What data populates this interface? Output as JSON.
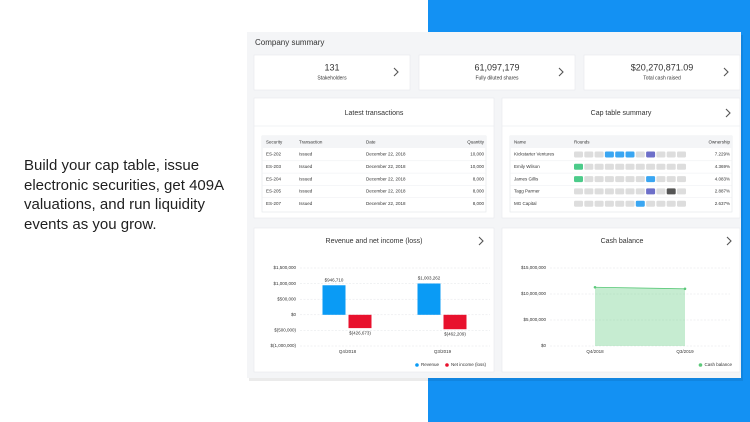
{
  "blurb": "Build your cap table, issue electronic securities, get 409A valuations, and run liquidity events as you grow.",
  "dashboard_title": "Company summary",
  "stats": [
    {
      "value": "131",
      "label": "Stakeholders"
    },
    {
      "value": "61,097,179",
      "label": "Fully diluted shares"
    },
    {
      "value": "$20,270,871.09",
      "label": "Total cash raised"
    }
  ],
  "transactions": {
    "title": "Latest transactions",
    "columns": [
      "Security",
      "Transaction",
      "Date",
      "Quantity"
    ],
    "rows": [
      [
        "ES-202",
        "Issued",
        "December 22, 2018",
        "10,000"
      ],
      [
        "ES-203",
        "Issued",
        "December 22, 2018",
        "10,000"
      ],
      [
        "ES-204",
        "Issued",
        "December 22, 2018",
        "8,000"
      ],
      [
        "ES-205",
        "Issued",
        "December 22, 2018",
        "8,000"
      ],
      [
        "ES-207",
        "Issued",
        "December 22, 2018",
        "8,000"
      ]
    ]
  },
  "cap_table": {
    "title": "Cap table summary",
    "columns": [
      "Name",
      "Rounds",
      "Ownership"
    ],
    "rows": [
      [
        "Kickstarter Ventures",
        "7.229%"
      ],
      [
        "Emily Wilson",
        "4.369%"
      ],
      [
        "James Gillis",
        "4.083%"
      ],
      [
        "Tagg Parmer",
        "2.887%"
      ],
      [
        "MG Capital",
        "2.637%"
      ]
    ]
  },
  "chart_data": [
    {
      "type": "bar",
      "title": "Revenue and net income (loss)",
      "categories": [
        "Q4/2018",
        "Q3/2019"
      ],
      "series": [
        {
          "name": "Revenue",
          "color": "#0a9bf5",
          "values": [
            946710,
            1003262
          ],
          "value_labels": [
            "$946,710",
            "$1,003,262"
          ]
        },
        {
          "name": "Net income (loss)",
          "color": "#e8112d",
          "values": [
            -426673,
            -462209
          ],
          "value_labels": [
            "$(426,673)",
            "$(462,209)"
          ]
        }
      ],
      "ylim": [
        -1000000,
        1500000
      ],
      "yticks": [
        {
          "value": -1000000,
          "label": "$(1,000,000)"
        },
        {
          "value": -500000,
          "label": "$(500,000)"
        },
        {
          "value": 0,
          "label": "$0"
        },
        {
          "value": 500000,
          "label": "$500,000"
        },
        {
          "value": 1000000,
          "label": "$1,000,000"
        },
        {
          "value": 1500000,
          "label": "$1,500,000"
        }
      ],
      "grid": true
    },
    {
      "type": "area",
      "title": "Cash balance",
      "categories": [
        "Q4/2018",
        "Q3/2019"
      ],
      "series": [
        {
          "name": "Cash balance",
          "color": "#5cc97a",
          "values": [
            11300000,
            11000000
          ]
        }
      ],
      "ylim": [
        0,
        15000000
      ],
      "yticks": [
        {
          "value": 0,
          "label": "$0"
        },
        {
          "value": 5000000,
          "label": "$5,000,000"
        },
        {
          "value": 10000000,
          "label": "$10,000,000"
        },
        {
          "value": 15000000,
          "label": "$15,000,000"
        }
      ],
      "grid": true
    }
  ]
}
